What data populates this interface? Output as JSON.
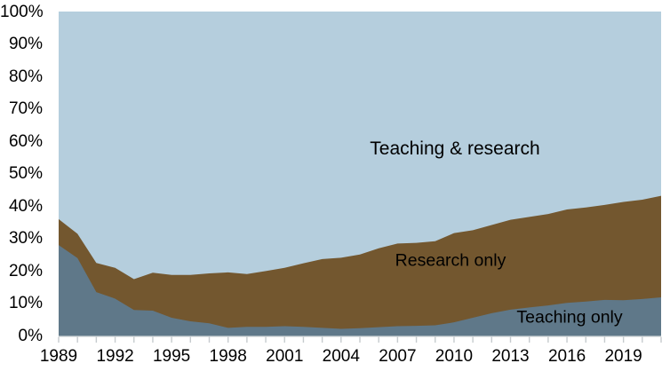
{
  "chart_data": {
    "type": "area",
    "stacked": true,
    "title": "",
    "xlabel": "",
    "ylabel": "",
    "ylim": [
      0,
      100
    ],
    "grid": false,
    "legend_position": "labels drawn inside plot areas",
    "x": [
      1989,
      1990,
      1991,
      1992,
      1993,
      1994,
      1995,
      1996,
      1997,
      1998,
      1999,
      2000,
      2001,
      2002,
      2003,
      2004,
      2005,
      2006,
      2007,
      2008,
      2009,
      2010,
      2011,
      2012,
      2013,
      2014,
      2015,
      2016,
      2017,
      2018,
      2019,
      2020,
      2021
    ],
    "x_tick_years": [
      1989,
      1992,
      1995,
      1998,
      2001,
      2004,
      2007,
      2010,
      2013,
      2016,
      2019
    ],
    "x_tick_labels": [
      "1989",
      "1992",
      "1995",
      "1998",
      "2001",
      "2004",
      "2007",
      "2010",
      "2013",
      "2016",
      "2019"
    ],
    "y_ticks": [
      0,
      10,
      20,
      30,
      40,
      50,
      60,
      70,
      80,
      90,
      100
    ],
    "y_tick_labels": [
      "0%",
      "10%",
      "20%",
      "30%",
      "40%",
      "50%",
      "60%",
      "70%",
      "80%",
      "90%",
      "100%"
    ],
    "series": [
      {
        "name": "Teaching only",
        "color": "#5f7889",
        "values": [
          28,
          24,
          13.5,
          11.5,
          8,
          7.8,
          5.6,
          4.5,
          3.9,
          2.5,
          2.8,
          2.8,
          3,
          2.8,
          2.5,
          2.2,
          2.4,
          2.7,
          3,
          3.1,
          3.3,
          4.2,
          5.6,
          7,
          8.1,
          8.8,
          9.4,
          10.2,
          10.6,
          11.1,
          11,
          11.4,
          11.9
        ]
      },
      {
        "name": "Research only",
        "color": "#73572f",
        "values": [
          8,
          7.5,
          9,
          9.5,
          9.5,
          11.7,
          13.2,
          14.3,
          15.4,
          17.1,
          16.3,
          17.2,
          18,
          19.6,
          21.2,
          21.9,
          22.7,
          24.3,
          25.5,
          25.6,
          25.9,
          27.5,
          27,
          27.2,
          27.7,
          27.9,
          28.2,
          28.8,
          29,
          29.3,
          30.3,
          30.6,
          31.3
        ]
      },
      {
        "name": "Teaching & research",
        "color": "#b5cedd",
        "values": [
          64,
          68.5,
          77.5,
          79,
          82.5,
          80.5,
          81.2,
          81.2,
          80.7,
          80.4,
          80.9,
          80,
          79,
          77.6,
          76.3,
          75.9,
          74.9,
          73,
          71.5,
          71.3,
          70.8,
          68.3,
          67.4,
          65.8,
          64.2,
          63.3,
          62.4,
          61,
          60.4,
          59.6,
          58.7,
          58,
          56.8
        ]
      }
    ],
    "annotations": [
      {
        "text": "Teaching & research"
      },
      {
        "text": "Research only"
      },
      {
        "text": "Teaching only"
      }
    ],
    "colors": {
      "axis_tick": "#c6cbce",
      "axis_line": "#d4d7d9",
      "label_text": "#000000",
      "background": "#ffffff"
    }
  }
}
